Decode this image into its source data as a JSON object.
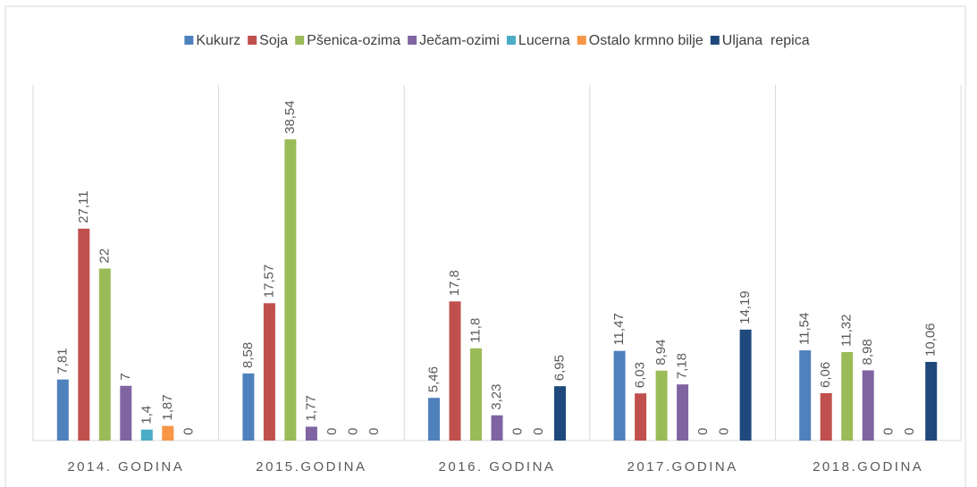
{
  "chart_data": {
    "type": "bar",
    "categories": [
      "2014. GODINA",
      "2015.GODINA",
      "2016. GODINA",
      "2017.GODINA",
      "2018.GODINA"
    ],
    "ylim": [
      0,
      45.5
    ],
    "legend": "top",
    "series": [
      {
        "name": "Kukurz",
        "color": "#4f81bd",
        "values": [
          7.81,
          8.58,
          5.46,
          11.47,
          11.54
        ],
        "value_labels": [
          "7,81",
          "8,58",
          "5,46",
          "11,47",
          "11,54"
        ]
      },
      {
        "name": "Soja",
        "color": "#c0504d",
        "values": [
          27.11,
          17.57,
          17.8,
          6.03,
          6.06
        ],
        "value_labels": [
          "27,11",
          "17,57",
          "17,8",
          "6,03",
          "6,06"
        ]
      },
      {
        "name": "Pšenica-ozima",
        "color": "#9bbb59",
        "values": [
          22,
          38.54,
          11.8,
          8.94,
          11.32
        ],
        "value_labels": [
          "22",
          "38,54",
          "11,8",
          "8,94",
          "11,32"
        ]
      },
      {
        "name": "Ječam-ozimi",
        "color": "#8064a2",
        "values": [
          7,
          1.77,
          3.23,
          7.18,
          8.98
        ],
        "value_labels": [
          "7",
          "1,77",
          "3,23",
          "7,18",
          "8,98"
        ]
      },
      {
        "name": "Lucerna",
        "color": "#4bacc6",
        "values": [
          1.4,
          0,
          0,
          0,
          0
        ],
        "value_labels": [
          "1,4",
          "0",
          "0",
          "0",
          "0"
        ]
      },
      {
        "name": "Ostalo krmno bilje",
        "color": "#f79646",
        "values": [
          1.87,
          0,
          0,
          0,
          0
        ],
        "value_labels": [
          "1,87",
          "0",
          "0",
          "0",
          "0"
        ]
      },
      {
        "name": "Uljana  repica",
        "color": "#1f497d",
        "values": [
          0,
          0,
          6.95,
          14.19,
          10.06
        ],
        "value_labels": [
          "0",
          "0",
          "6,95",
          "14,19",
          "10,06"
        ]
      }
    ]
  }
}
